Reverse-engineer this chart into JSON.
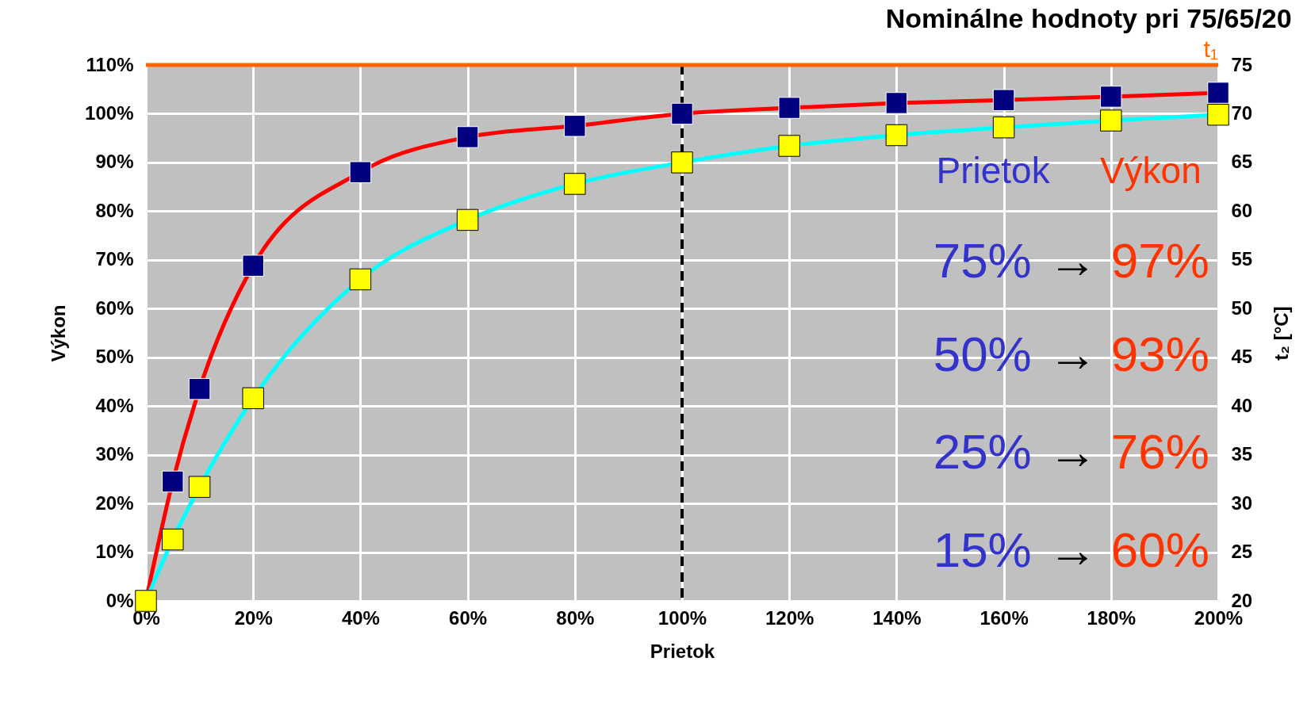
{
  "chart_data": {
    "type": "line",
    "title": "Nominálne hodnoty pri 75/65/20",
    "xlabel": "Prietok",
    "ylabel": "Výkon",
    "y2label": "t₂ [°C]",
    "x": [
      0,
      5,
      10,
      20,
      40,
      60,
      80,
      100,
      120,
      140,
      160,
      180,
      200
    ],
    "series": [
      {
        "color": "#ff0000",
        "values": [
          0,
          24.5,
          43.5,
          68.8,
          88,
          95.2,
          97.5,
          100,
          101.2,
          102.2,
          102.8,
          103.5,
          104.3
        ]
      },
      {
        "color": "#00ffff",
        "axis": "y2",
        "values": [
          20,
          26.3,
          31.7,
          40.8,
          53,
          59.1,
          62.8,
          65,
          66.7,
          67.8,
          68.6,
          69.3,
          69.9
        ]
      }
    ],
    "xlim": [
      0,
      200
    ],
    "xticks": [
      {
        "value": 0,
        "label": "0%"
      },
      {
        "value": 20,
        "label": "20%"
      },
      {
        "value": 40,
        "label": "40%"
      },
      {
        "value": 60,
        "label": "60%"
      },
      {
        "value": 80,
        "label": "80%"
      },
      {
        "value": 100,
        "label": "100%"
      },
      {
        "value": 120,
        "label": "120%"
      },
      {
        "value": 140,
        "label": "140%"
      },
      {
        "value": 160,
        "label": "160%"
      },
      {
        "value": 180,
        "label": "180%"
      },
      {
        "value": 200,
        "label": "200%"
      }
    ],
    "ylim": [
      0,
      110
    ],
    "yticks": [
      {
        "value": 0,
        "label": "0%"
      },
      {
        "value": 10,
        "label": "10%"
      },
      {
        "value": 20,
        "label": "20%"
      },
      {
        "value": 30,
        "label": "30%"
      },
      {
        "value": 40,
        "label": "40%"
      },
      {
        "value": 50,
        "label": "50%"
      },
      {
        "value": 60,
        "label": "60%"
      },
      {
        "value": 70,
        "label": "70%"
      },
      {
        "value": 80,
        "label": "80%"
      },
      {
        "value": 90,
        "label": "90%"
      },
      {
        "value": 100,
        "label": "100%"
      },
      {
        "value": 110,
        "label": "110%"
      }
    ],
    "y2lim": [
      20,
      75
    ],
    "y2ticks": [
      20,
      25,
      30,
      35,
      40,
      45,
      50,
      55,
      60,
      65,
      70,
      75
    ],
    "ref_lines": [
      {
        "axis": "x",
        "value": 100,
        "color": "#000000",
        "line_style": "dashed"
      },
      {
        "axis": "y2",
        "value": 75,
        "label": "t₁",
        "color": "#ff6600"
      }
    ],
    "annotations": [
      "Prietok",
      "Výkon",
      "75%",
      "→",
      "97%",
      "50%",
      "→",
      "93%",
      "25%",
      "→",
      "76%",
      "15%",
      "→",
      "60%"
    ],
    "grid": true,
    "marker": "square",
    "line_style": "solid"
  }
}
